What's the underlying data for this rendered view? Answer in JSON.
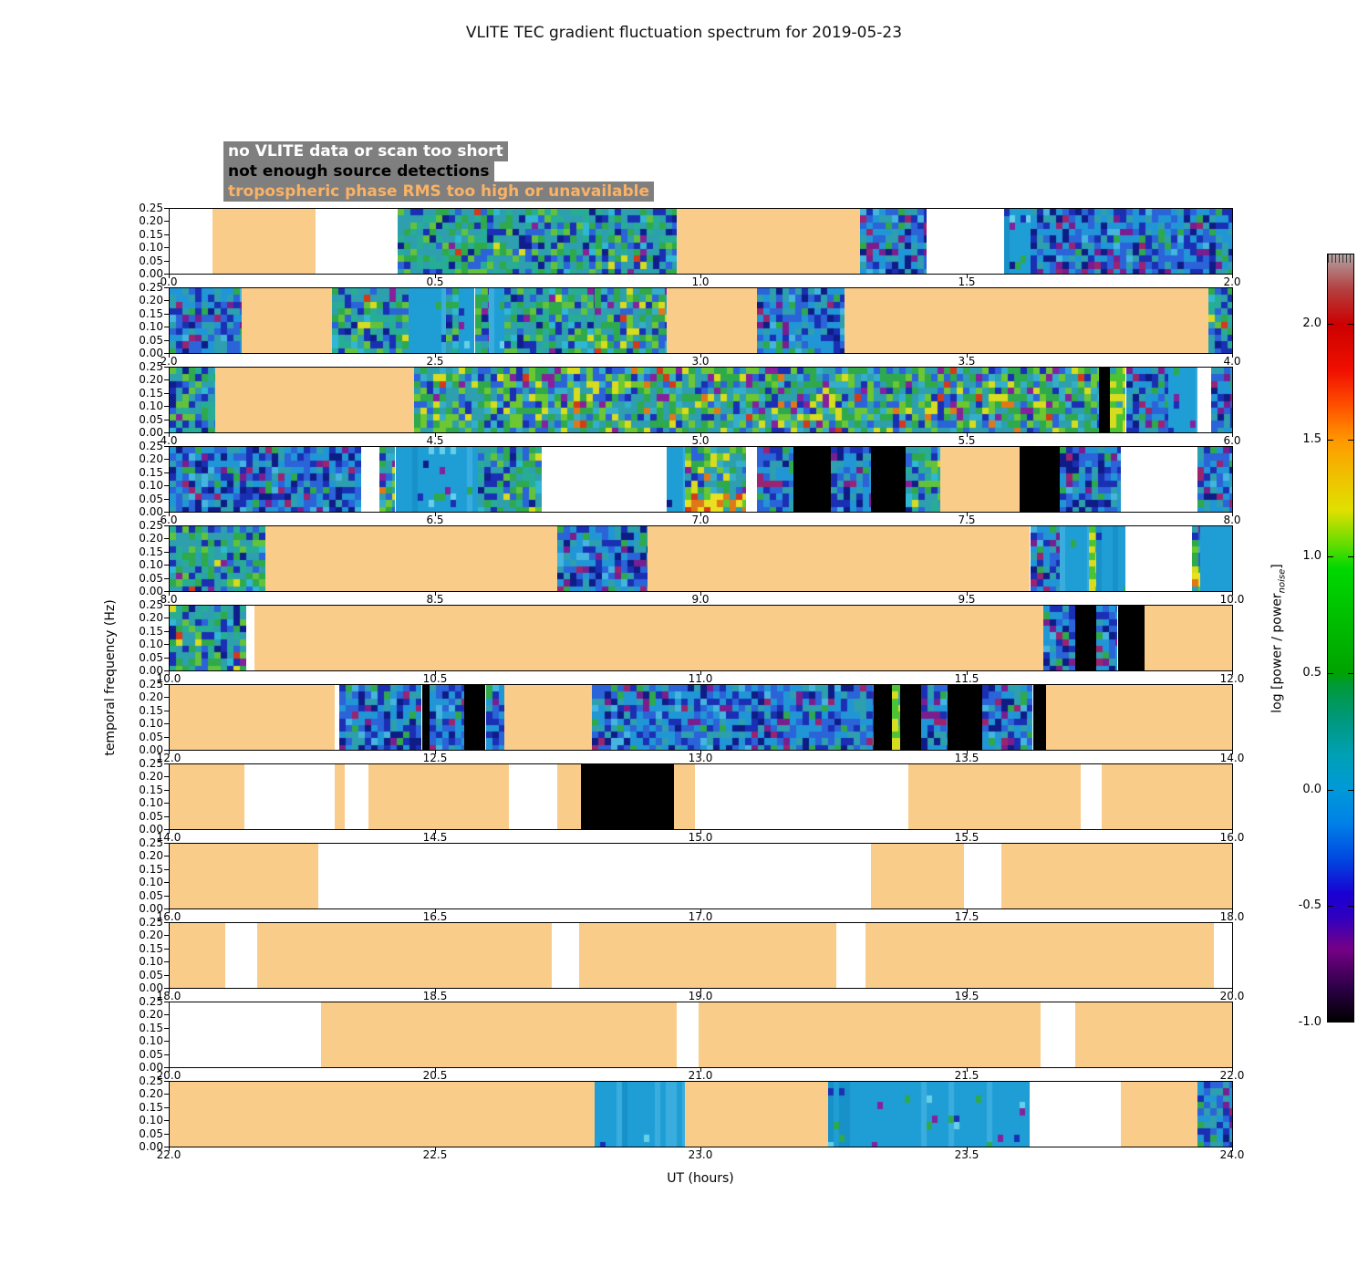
{
  "title": "VLITE TEC gradient fluctuation spectrum for 2019-05-23",
  "legend": {
    "bg": "#7F7F7F",
    "items": [
      {
        "label": "no VLITE data or scan too short",
        "text_color": "#FFFFFF"
      },
      {
        "label": "not enough source detections",
        "text_color": "#000000"
      },
      {
        "label": "tropospheric phase RMS too high or unavailable",
        "text_color": "#F9B266"
      }
    ]
  },
  "axes": {
    "xlabel": "UT (hours)",
    "ylabel": "temporal frequency (Hz)",
    "yticks": [
      "0.25",
      "0.20",
      "0.15",
      "0.10",
      "0.05",
      "0.00"
    ]
  },
  "colorbar": {
    "label_prefix": "log [power / power",
    "label_sub": "noise",
    "label_suffix": "]",
    "ticks": [
      "2.0",
      "1.5",
      "1.0",
      "0.5",
      "0.0",
      "-0.5",
      "-1.0"
    ],
    "tick_values": [
      2.0,
      1.5,
      1.0,
      0.5,
      0.0,
      -0.5,
      -1.0
    ],
    "value_range": [
      -1.0,
      2.3
    ]
  },
  "status_colors": {
    "tropo": "#FACC8A",
    "no_detections": "#000000",
    "no_data": "#FFFFFF"
  },
  "chart_data": {
    "type": "heatmap",
    "title": "VLITE TEC gradient fluctuation spectrum for 2019-05-23",
    "xlabel": "UT (hours)",
    "ylabel": "temporal frequency (Hz)",
    "y_range_hz": [
      0.0,
      0.25
    ],
    "colorbar": {
      "label": "log [power / power_noise]",
      "range": [
        -1.0,
        2.3
      ],
      "ticks": [
        2.0,
        1.5,
        1.0,
        0.5,
        0.0,
        -0.5,
        -1.0
      ]
    },
    "legend_notes": [
      "no VLITE data or scan too short",
      "not enough source detections",
      "tropospheric phase RMS too high or unavailable"
    ],
    "segment_kinds": {
      "spectrum": "measured fluctuation spectrum (noisy color data)",
      "flat": "low-variance spectrum (smooth cyan)",
      "tropo": "tropospheric phase RMS too high or unavailable",
      "no_detections": "not enough source detections",
      "no_data": "no VLITE data or scan too short"
    },
    "panels": [
      {
        "ut_start": 0,
        "ut_end": 2,
        "xticks": [
          "0.0",
          "0.5",
          "1.0",
          "1.5",
          "2.0"
        ],
        "segments": [
          {
            "s": 0.0,
            "e": 0.08,
            "k": "no_data"
          },
          {
            "s": 0.08,
            "e": 0.275,
            "k": "tropo"
          },
          {
            "s": 0.275,
            "e": 0.43,
            "k": "no_data"
          },
          {
            "s": 0.43,
            "e": 0.955,
            "k": "spectrum",
            "v": "tealgreen"
          },
          {
            "s": 0.955,
            "e": 1.3,
            "k": "tropo"
          },
          {
            "s": 1.3,
            "e": 1.425,
            "k": "spectrum",
            "v": "blue"
          },
          {
            "s": 1.425,
            "e": 1.57,
            "k": "no_data"
          },
          {
            "s": 1.57,
            "e": 1.62,
            "k": "flat"
          },
          {
            "s": 1.62,
            "e": 2.0,
            "k": "spectrum",
            "v": "blue"
          }
        ]
      },
      {
        "ut_start": 2,
        "ut_end": 4,
        "xticks": [
          "2.0",
          "2.5",
          "3.0",
          "3.5",
          "4.0"
        ],
        "segments": [
          {
            "s": 2.0,
            "e": 2.135,
            "k": "spectrum",
            "v": "blue"
          },
          {
            "s": 2.135,
            "e": 2.305,
            "k": "tropo"
          },
          {
            "s": 2.305,
            "e": 2.45,
            "k": "spectrum",
            "v": "tealgreen"
          },
          {
            "s": 2.45,
            "e": 2.52,
            "k": "flat"
          },
          {
            "s": 2.52,
            "e": 2.545,
            "k": "spectrum",
            "v": "tealgreen"
          },
          {
            "s": 2.545,
            "e": 2.575,
            "k": "flat"
          },
          {
            "s": 2.575,
            "e": 2.6,
            "k": "spectrum",
            "v": "tealgreen"
          },
          {
            "s": 2.6,
            "e": 2.63,
            "k": "flat"
          },
          {
            "s": 2.63,
            "e": 2.8,
            "k": "spectrum",
            "v": "tealgreen"
          },
          {
            "s": 2.8,
            "e": 2.935,
            "k": "spectrum",
            "v": "bright"
          },
          {
            "s": 2.935,
            "e": 3.105,
            "k": "tropo"
          },
          {
            "s": 3.105,
            "e": 3.27,
            "k": "spectrum",
            "v": "blue"
          },
          {
            "s": 3.27,
            "e": 3.955,
            "k": "tropo"
          },
          {
            "s": 3.955,
            "e": 4.0,
            "k": "spectrum",
            "v": "tealgreen"
          }
        ]
      },
      {
        "ut_start": 4,
        "ut_end": 6,
        "xticks": [
          "4.0",
          "4.5",
          "5.0",
          "5.5",
          "6.0"
        ],
        "segments": [
          {
            "s": 4.0,
            "e": 4.085,
            "k": "spectrum",
            "v": "tealgreen"
          },
          {
            "s": 4.085,
            "e": 4.46,
            "k": "tropo"
          },
          {
            "s": 4.46,
            "e": 5.75,
            "k": "spectrum",
            "v": "bright"
          },
          {
            "s": 5.75,
            "e": 5.77,
            "k": "no_detections"
          },
          {
            "s": 5.77,
            "e": 5.8,
            "k": "spectrum",
            "v": "streak"
          },
          {
            "s": 5.8,
            "e": 5.88,
            "k": "spectrum",
            "v": "blue"
          },
          {
            "s": 5.88,
            "e": 5.935,
            "k": "flat"
          },
          {
            "s": 5.935,
            "e": 5.96,
            "k": "no_data"
          },
          {
            "s": 5.96,
            "e": 6.0,
            "k": "spectrum",
            "v": "blue"
          }
        ]
      },
      {
        "ut_start": 6,
        "ut_end": 8,
        "xticks": [
          "6.0",
          "6.5",
          "7.0",
          "7.5",
          "8.0"
        ],
        "segments": [
          {
            "s": 6.0,
            "e": 6.36,
            "k": "spectrum",
            "v": "blue"
          },
          {
            "s": 6.36,
            "e": 6.395,
            "k": "no_data"
          },
          {
            "s": 6.395,
            "e": 6.425,
            "k": "spectrum",
            "v": "bright"
          },
          {
            "s": 6.425,
            "e": 6.58,
            "k": "flat"
          },
          {
            "s": 6.58,
            "e": 6.7,
            "k": "spectrum",
            "v": "tealgreen"
          },
          {
            "s": 6.7,
            "e": 6.935,
            "k": "no_data"
          },
          {
            "s": 6.935,
            "e": 6.97,
            "k": "flat"
          },
          {
            "s": 6.97,
            "e": 7.085,
            "k": "spectrum",
            "v": "hot"
          },
          {
            "s": 7.085,
            "e": 7.105,
            "k": "no_data"
          },
          {
            "s": 7.105,
            "e": 7.175,
            "k": "spectrum",
            "v": "blue"
          },
          {
            "s": 7.175,
            "e": 7.245,
            "k": "no_detections"
          },
          {
            "s": 7.245,
            "e": 7.32,
            "k": "spectrum",
            "v": "blue"
          },
          {
            "s": 7.32,
            "e": 7.385,
            "k": "no_detections"
          },
          {
            "s": 7.385,
            "e": 7.45,
            "k": "spectrum",
            "v": "tealgreen"
          },
          {
            "s": 7.45,
            "e": 7.6,
            "k": "tropo"
          },
          {
            "s": 7.6,
            "e": 7.675,
            "k": "no_detections"
          },
          {
            "s": 7.675,
            "e": 7.79,
            "k": "spectrum",
            "v": "blue"
          },
          {
            "s": 7.79,
            "e": 7.935,
            "k": "no_data"
          },
          {
            "s": 7.935,
            "e": 8.0,
            "k": "spectrum",
            "v": "blue"
          }
        ]
      },
      {
        "ut_start": 8,
        "ut_end": 10,
        "xticks": [
          "8.0",
          "8.5",
          "9.0",
          "9.5",
          "10.0"
        ],
        "segments": [
          {
            "s": 8.0,
            "e": 8.18,
            "k": "spectrum",
            "v": "tealgreen"
          },
          {
            "s": 8.18,
            "e": 8.73,
            "k": "tropo"
          },
          {
            "s": 8.73,
            "e": 8.9,
            "k": "spectrum",
            "v": "blue"
          },
          {
            "s": 8.9,
            "e": 9.62,
            "k": "tropo"
          },
          {
            "s": 9.62,
            "e": 9.675,
            "k": "spectrum",
            "v": "blue"
          },
          {
            "s": 9.675,
            "e": 9.73,
            "k": "flat"
          },
          {
            "s": 9.73,
            "e": 9.745,
            "k": "spectrum",
            "v": "streak"
          },
          {
            "s": 9.745,
            "e": 9.8,
            "k": "flat"
          },
          {
            "s": 9.8,
            "e": 9.925,
            "k": "no_data"
          },
          {
            "s": 9.925,
            "e": 9.94,
            "k": "spectrum",
            "v": "hot"
          },
          {
            "s": 9.94,
            "e": 10.0,
            "k": "flat"
          }
        ]
      },
      {
        "ut_start": 10,
        "ut_end": 12,
        "xticks": [
          "10.0",
          "10.5",
          "11.0",
          "11.5",
          "12.0"
        ],
        "segments": [
          {
            "s": 10.0,
            "e": 10.145,
            "k": "spectrum",
            "v": "tealgreen"
          },
          {
            "s": 10.145,
            "e": 10.16,
            "k": "no_data"
          },
          {
            "s": 10.16,
            "e": 11.645,
            "k": "tropo"
          },
          {
            "s": 11.645,
            "e": 11.705,
            "k": "spectrum",
            "v": "blue"
          },
          {
            "s": 11.705,
            "e": 11.745,
            "k": "no_detections"
          },
          {
            "s": 11.745,
            "e": 11.785,
            "k": "spectrum",
            "v": "blue"
          },
          {
            "s": 11.785,
            "e": 11.835,
            "k": "no_detections"
          },
          {
            "s": 11.835,
            "e": 12.0,
            "k": "tropo"
          }
        ]
      },
      {
        "ut_start": 12,
        "ut_end": 14,
        "xticks": [
          "12.0",
          "12.5",
          "13.0",
          "13.5",
          "14.0"
        ],
        "segments": [
          {
            "s": 12.0,
            "e": 12.31,
            "k": "tropo"
          },
          {
            "s": 12.31,
            "e": 12.32,
            "k": "no_data"
          },
          {
            "s": 12.32,
            "e": 12.475,
            "k": "spectrum",
            "v": "blue"
          },
          {
            "s": 12.475,
            "e": 12.49,
            "k": "no_detections"
          },
          {
            "s": 12.49,
            "e": 12.555,
            "k": "spectrum",
            "v": "blue"
          },
          {
            "s": 12.555,
            "e": 12.595,
            "k": "no_detections"
          },
          {
            "s": 12.595,
            "e": 12.63,
            "k": "spectrum",
            "v": "blue"
          },
          {
            "s": 12.63,
            "e": 12.795,
            "k": "tropo"
          },
          {
            "s": 12.795,
            "e": 13.325,
            "k": "spectrum",
            "v": "blue"
          },
          {
            "s": 13.325,
            "e": 13.36,
            "k": "no_detections"
          },
          {
            "s": 13.36,
            "e": 13.375,
            "k": "spectrum",
            "v": "streak"
          },
          {
            "s": 13.375,
            "e": 13.415,
            "k": "no_detections"
          },
          {
            "s": 13.415,
            "e": 13.465,
            "k": "spectrum",
            "v": "blue"
          },
          {
            "s": 13.465,
            "e": 13.53,
            "k": "no_detections"
          },
          {
            "s": 13.53,
            "e": 13.625,
            "k": "spectrum",
            "v": "blue"
          },
          {
            "s": 13.625,
            "e": 13.65,
            "k": "no_detections"
          },
          {
            "s": 13.65,
            "e": 14.0,
            "k": "tropo"
          }
        ]
      },
      {
        "ut_start": 14,
        "ut_end": 16,
        "xticks": [
          "14.0",
          "14.5",
          "15.0",
          "15.5",
          "16.0"
        ],
        "segments": [
          {
            "s": 14.0,
            "e": 14.14,
            "k": "tropo"
          },
          {
            "s": 14.14,
            "e": 14.31,
            "k": "no_data"
          },
          {
            "s": 14.31,
            "e": 14.33,
            "k": "tropo"
          },
          {
            "s": 14.33,
            "e": 14.375,
            "k": "no_data"
          },
          {
            "s": 14.375,
            "e": 14.64,
            "k": "tropo"
          },
          {
            "s": 14.64,
            "e": 14.73,
            "k": "no_data"
          },
          {
            "s": 14.73,
            "e": 14.775,
            "k": "tropo"
          },
          {
            "s": 14.775,
            "e": 14.95,
            "k": "no_detections"
          },
          {
            "s": 14.95,
            "e": 14.99,
            "k": "tropo"
          },
          {
            "s": 14.99,
            "e": 15.39,
            "k": "no_data"
          },
          {
            "s": 15.39,
            "e": 15.715,
            "k": "tropo"
          },
          {
            "s": 15.715,
            "e": 15.755,
            "k": "no_data"
          },
          {
            "s": 15.755,
            "e": 16.0,
            "k": "tropo"
          }
        ]
      },
      {
        "ut_start": 16,
        "ut_end": 18,
        "xticks": [
          "16.0",
          "16.5",
          "17.0",
          "17.5",
          "18.0"
        ],
        "segments": [
          {
            "s": 16.0,
            "e": 16.28,
            "k": "tropo"
          },
          {
            "s": 16.28,
            "e": 17.32,
            "k": "no_data"
          },
          {
            "s": 17.32,
            "e": 17.495,
            "k": "tropo"
          },
          {
            "s": 17.495,
            "e": 17.565,
            "k": "no_data"
          },
          {
            "s": 17.565,
            "e": 18.0,
            "k": "tropo"
          }
        ]
      },
      {
        "ut_start": 18,
        "ut_end": 20,
        "xticks": [
          "18.0",
          "18.5",
          "19.0",
          "19.5",
          "20.0"
        ],
        "segments": [
          {
            "s": 18.0,
            "e": 18.105,
            "k": "tropo"
          },
          {
            "s": 18.105,
            "e": 18.165,
            "k": "no_data"
          },
          {
            "s": 18.165,
            "e": 18.72,
            "k": "tropo"
          },
          {
            "s": 18.72,
            "e": 18.77,
            "k": "no_data"
          },
          {
            "s": 18.77,
            "e": 19.255,
            "k": "tropo"
          },
          {
            "s": 19.255,
            "e": 19.31,
            "k": "no_data"
          },
          {
            "s": 19.31,
            "e": 19.965,
            "k": "tropo"
          },
          {
            "s": 19.965,
            "e": 20.0,
            "k": "no_data"
          }
        ]
      },
      {
        "ut_start": 20,
        "ut_end": 22,
        "xticks": [
          "20.0",
          "20.5",
          "21.0",
          "21.5",
          "22.0"
        ],
        "segments": [
          {
            "s": 20.0,
            "e": 20.285,
            "k": "no_data"
          },
          {
            "s": 20.285,
            "e": 20.955,
            "k": "tropo"
          },
          {
            "s": 20.955,
            "e": 20.995,
            "k": "no_data"
          },
          {
            "s": 20.995,
            "e": 21.64,
            "k": "tropo"
          },
          {
            "s": 21.64,
            "e": 21.705,
            "k": "no_data"
          },
          {
            "s": 21.705,
            "e": 22.0,
            "k": "tropo"
          }
        ]
      },
      {
        "ut_start": 22,
        "ut_end": 24,
        "xticks": [
          "22.0",
          "22.5",
          "23.0",
          "23.5",
          "24.0"
        ],
        "segments": [
          {
            "s": 22.0,
            "e": 22.8,
            "k": "tropo"
          },
          {
            "s": 22.8,
            "e": 22.97,
            "k": "flat"
          },
          {
            "s": 22.97,
            "e": 23.24,
            "k": "tropo"
          },
          {
            "s": 23.24,
            "e": 23.62,
            "k": "flat"
          },
          {
            "s": 23.62,
            "e": 23.79,
            "k": "no_data"
          },
          {
            "s": 23.79,
            "e": 23.935,
            "k": "tropo"
          },
          {
            "s": 23.935,
            "e": 24.0,
            "k": "spectrum",
            "v": "blue"
          }
        ]
      }
    ]
  }
}
